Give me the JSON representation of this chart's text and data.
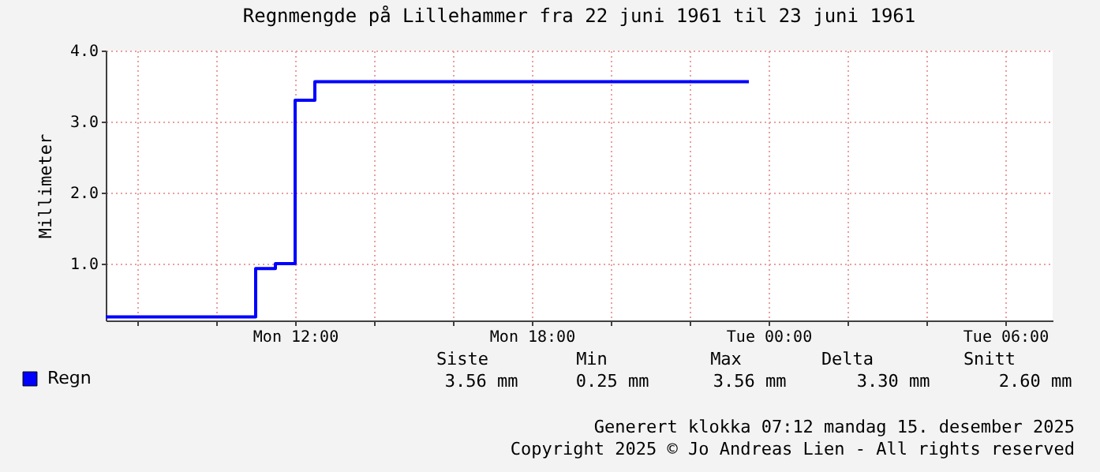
{
  "chart_data": {
    "type": "step",
    "title": "Regnmengde på Lillehammer fra 22 juni 1961 til 23 juni 1961",
    "ylabel": "Millimeter",
    "x": [
      "1961-06-22T07:12",
      "1961-06-22T11:00",
      "1961-06-22T11:30",
      "1961-06-22T12:00",
      "1961-06-22T12:30",
      "1961-06-22T23:30"
    ],
    "series": [
      {
        "name": "Regn",
        "color": "#0000ff",
        "values": [
          0.25,
          0.93,
          1.0,
          3.3,
          3.56,
          3.56
        ]
      }
    ],
    "xlim": [
      "1961-06-22T07:12",
      "1961-06-23T07:12"
    ],
    "xticks": [
      {
        "value": "1961-06-22T08:00",
        "label": null
      },
      {
        "value": "1961-06-22T10:00",
        "label": null
      },
      {
        "value": "1961-06-22T12:00",
        "label": "Mon 12:00"
      },
      {
        "value": "1961-06-22T14:00",
        "label": null
      },
      {
        "value": "1961-06-22T16:00",
        "label": null
      },
      {
        "value": "1961-06-22T18:00",
        "label": "Mon 18:00"
      },
      {
        "value": "1961-06-22T20:00",
        "label": null
      },
      {
        "value": "1961-06-22T22:00",
        "label": null
      },
      {
        "value": "1961-06-23T00:00",
        "label": "Tue 00:00"
      },
      {
        "value": "1961-06-23T02:00",
        "label": null
      },
      {
        "value": "1961-06-23T04:00",
        "label": null
      },
      {
        "value": "1961-06-23T06:00",
        "label": "Tue 06:00"
      }
    ],
    "ylim": [
      0.2,
      4.0
    ],
    "yticks": [
      {
        "value": 1,
        "label": "1.0"
      },
      {
        "value": 2,
        "label": "2.0"
      },
      {
        "value": 3,
        "label": "3.0"
      },
      {
        "value": 4,
        "label": "4.0"
      }
    ],
    "grid": true,
    "legend": "bottom",
    "line_style": "solid",
    "marker": "none",
    "annotations": [
      "Siste",
      "Min",
      "Max",
      "Delta",
      "Snitt",
      "3.56 mm",
      "0.25 mm",
      "3.56 mm",
      "3.30 mm",
      "2.60 mm",
      "Generert klokka 07:12 mandag 15. desember 2025",
      "Copyright 2025 © Jo Andreas Lien - All rights reserved"
    ]
  }
}
